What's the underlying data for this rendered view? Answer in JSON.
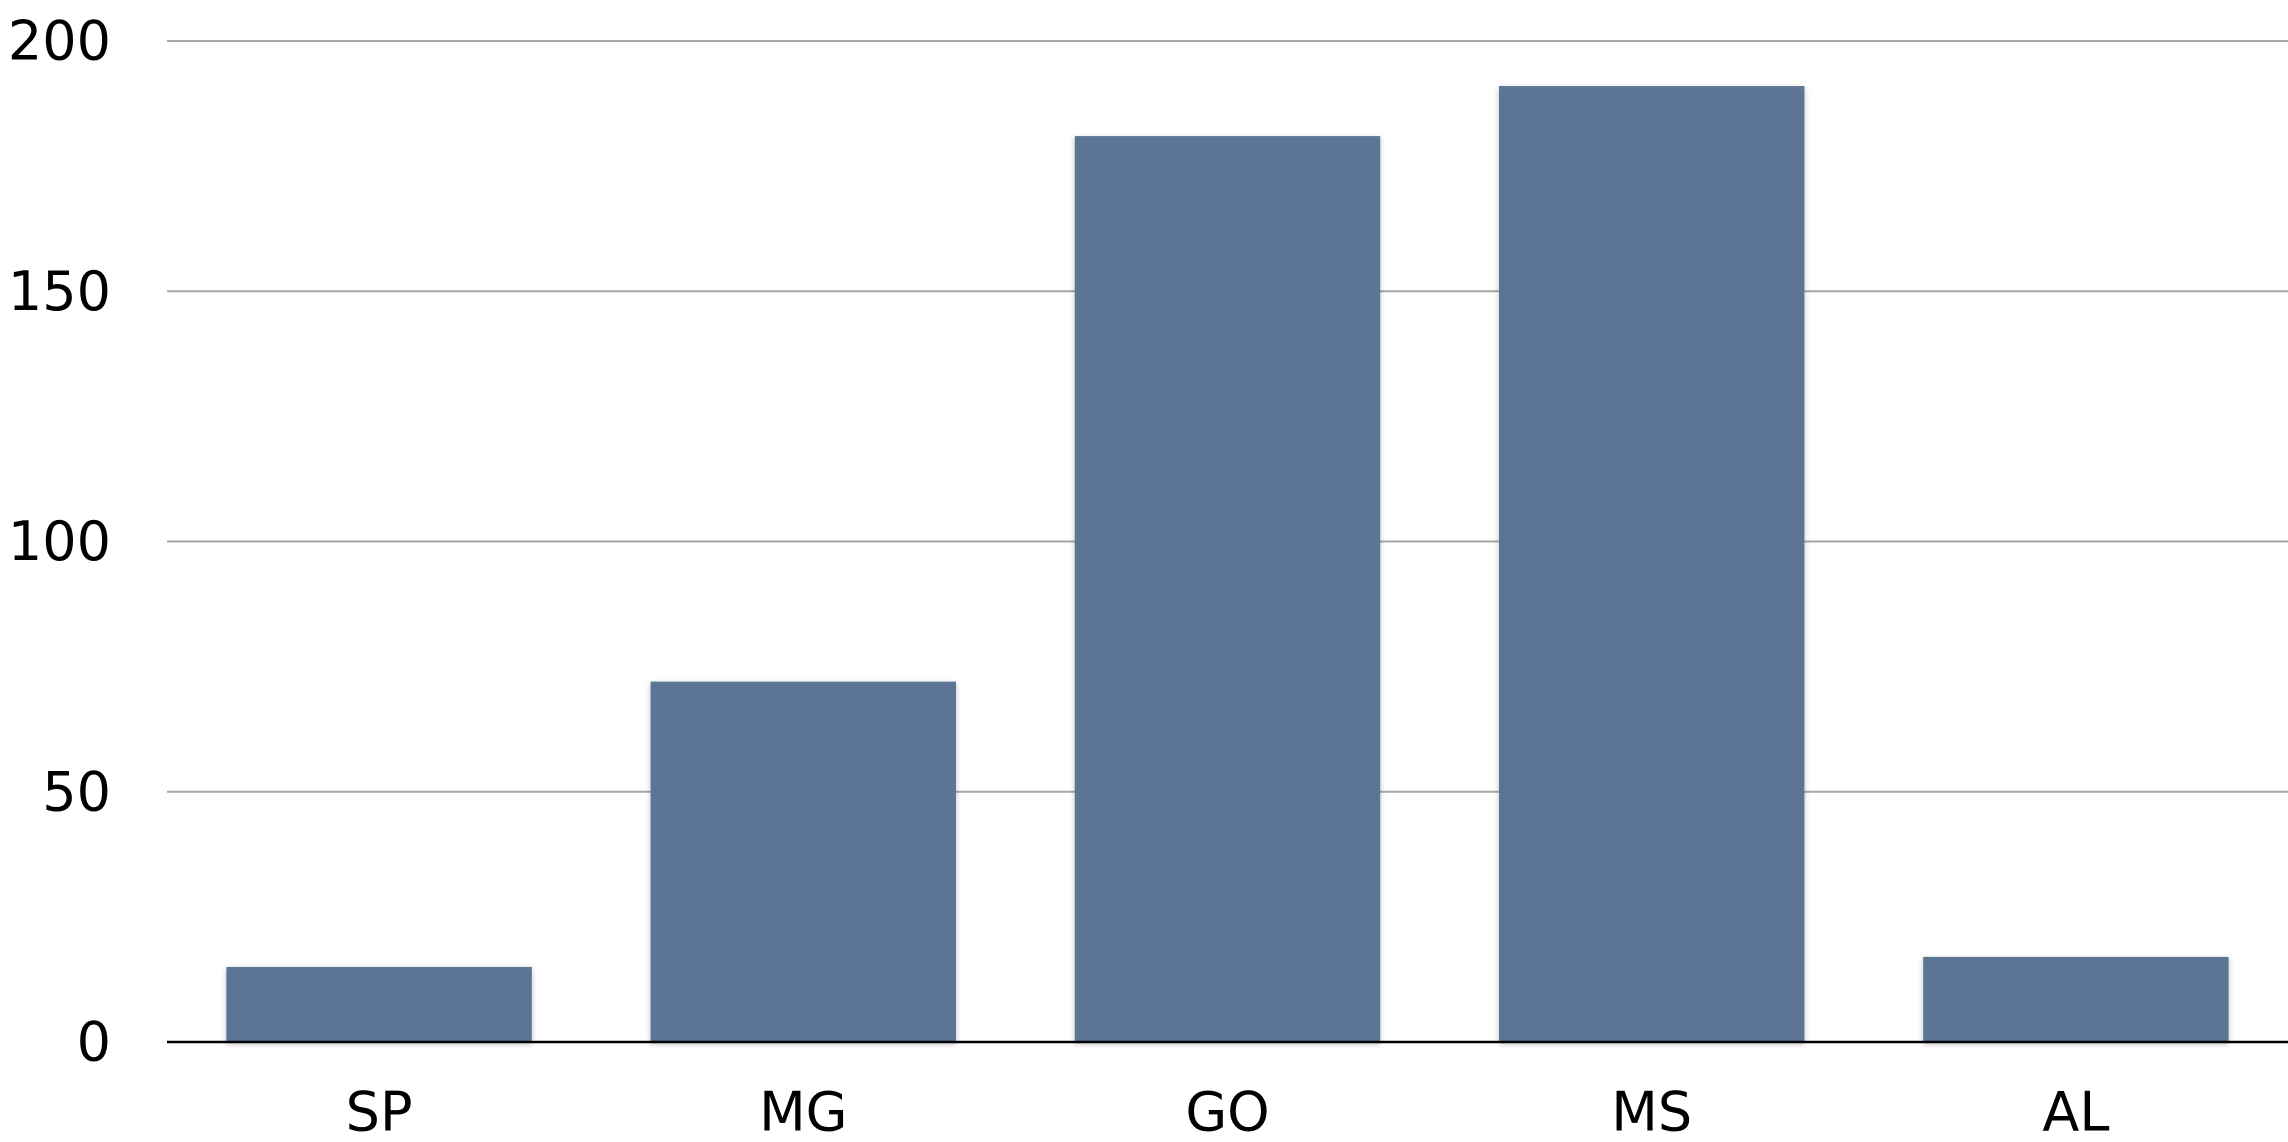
{
  "chart_data": {
    "type": "bar",
    "title": "",
    "xlabel": "",
    "ylabel": "",
    "categories": [
      "SP",
      "MG",
      "GO",
      "MS",
      "AL"
    ],
    "values": [
      15,
      72,
      181,
      191,
      17
    ],
    "ylim": [
      0,
      200
    ],
    "yticks": [
      0,
      50,
      100,
      150,
      200
    ],
    "yticks_labels": [
      "0",
      "50",
      "100",
      "150",
      "200"
    ],
    "grid": true,
    "legend": "none",
    "colors": {
      "bar": "#5b7494",
      "grid": "#a6a6a6",
      "axis": "#000000",
      "text": "#000000"
    }
  }
}
